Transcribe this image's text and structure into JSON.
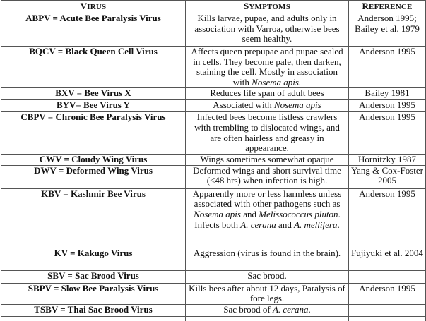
{
  "headers": [
    "Virus",
    "Symptoms",
    "Reference"
  ],
  "rows": [
    {
      "virus": "ABPV = Acute Bee Paralysis Virus",
      "symptoms": [
        {
          "t": "Kills larvae, pupae, and adults only in association with Varroa, otherwise bees seem healthy."
        }
      ],
      "reference": "Anderson 1995; Bailey et al. 1979"
    },
    {
      "virus": "BQCV = Black Queen Cell Virus",
      "symptoms": [
        {
          "t": "Affects queen prepupae and pupae sealed in cells.  They become pale, then darken, staining the cell.  Mostly in association with "
        },
        {
          "t": "Nosema apis.",
          "i": true
        }
      ],
      "reference": "Anderson 1995"
    },
    {
      "virus": "BXV = Bee Virus X",
      "symptoms": [
        {
          "t": "Reduces life span of adult bees"
        }
      ],
      "reference": "Bailey 1981"
    },
    {
      "virus": "BYV= Bee Virus Y",
      "symptoms": [
        {
          "t": "Associated with "
        },
        {
          "t": "Nosema apis",
          "i": true
        }
      ],
      "reference": "Anderson 1995"
    },
    {
      "virus": "CBPV = Chronic Bee Paralysis Virus",
      "symptoms": [
        {
          "t": "Infected bees become listless crawlers with trembling to dislocated wings, and are often hairless and greasy in appearance."
        }
      ],
      "reference": "Anderson 1995"
    },
    {
      "virus": "CWV = Cloudy Wing Virus",
      "symptoms": [
        {
          "t": "Wings sometimes somewhat opaque"
        }
      ],
      "reference": "Hornitzky 1987"
    },
    {
      "virus": "DWV = Deformed Wing Virus",
      "symptoms": [
        {
          "t": "Deformed wings and short survival time (<48 hrs) when infection is high."
        }
      ],
      "reference": "Yang & Cox-Foster 2005"
    },
    {
      "virus": "KBV = Kashmir Bee Virus",
      "symptoms": [
        {
          "t": "Apparently more or less harmless unless associated with other pathogens such as "
        },
        {
          "t": "Nosema apis",
          "i": true
        },
        {
          "t": " and "
        },
        {
          "t": "Melissococcus pluton",
          "i": true
        },
        {
          "t": ".  Infects both "
        },
        {
          "t": "A. cerana",
          "i": true
        },
        {
          "t": " and "
        },
        {
          "t": "A. mellifera",
          "i": true
        },
        {
          "t": "."
        }
      ],
      "reference": "Anderson 1995"
    },
    {
      "virus": "KV = Kakugo Virus",
      "symptoms": [
        {
          "t": "Aggression (virus is found in the brain)."
        }
      ],
      "reference": "Fujiyuki et al. 2004"
    },
    {
      "virus": "SBV = Sac Brood Virus",
      "symptoms": [
        {
          "t": "Sac brood."
        }
      ],
      "reference": ""
    },
    {
      "virus": "SBPV = Slow Bee Paralysis Virus",
      "symptoms": [
        {
          "t": "Kills bees after about 12 days, Paralysis of fore legs."
        }
      ],
      "reference": "Anderson 1995"
    },
    {
      "virus": "TSBV =  Thai Sac Brood Virus",
      "symptoms": [
        {
          "t": "Sac brood of "
        },
        {
          "t": "A. cerana",
          "i": true
        },
        {
          "t": "."
        }
      ],
      "reference": ""
    }
  ]
}
